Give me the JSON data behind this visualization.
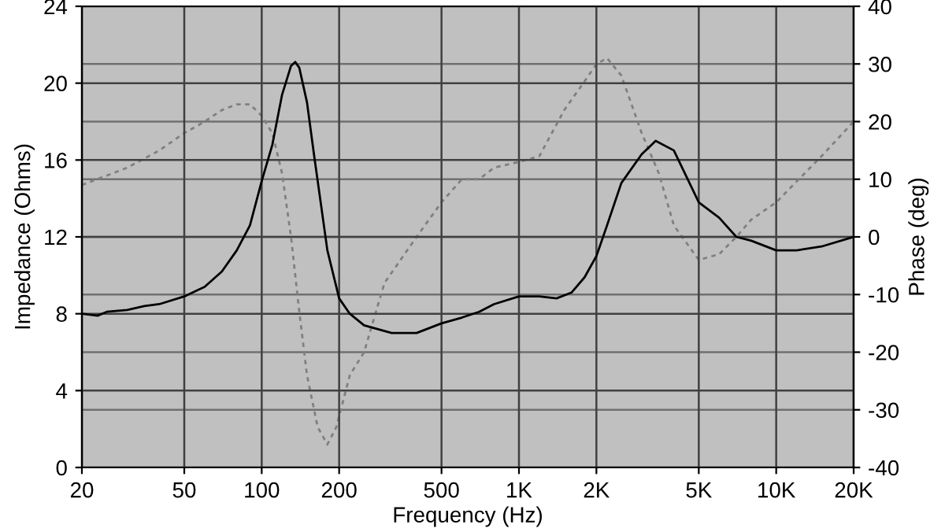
{
  "chart_data": {
    "type": "line",
    "xlabel": "Frequency (Hz)",
    "ylabel": "Impedance (Ohms)",
    "y2label": "Phase (deg)",
    "log": "x",
    "grid": true,
    "xlim": [
      20,
      20000
    ],
    "xticks": [
      20,
      50,
      100,
      200,
      500,
      {
        "value": 1000,
        "label": "1K"
      },
      {
        "value": 2000,
        "label": "2K"
      },
      {
        "value": 5000,
        "label": "5K"
      },
      {
        "value": 10000,
        "label": "10K"
      },
      {
        "value": 20000,
        "label": "20K"
      }
    ],
    "ylim": [
      0,
      24
    ],
    "yticks": [
      0,
      4,
      8,
      12,
      16,
      20,
      24
    ],
    "y2lim": [
      -40,
      40
    ],
    "y2ticks": [
      -40,
      -30,
      -20,
      -10,
      0,
      10,
      20,
      30,
      40
    ],
    "series": [
      {
        "color": "#000000",
        "line_style": "solid",
        "x": [
          20,
          23,
          25,
          30,
          35,
          40,
          50,
          60,
          70,
          80,
          90,
          100,
          110,
          120,
          130,
          135,
          140,
          150,
          160,
          180,
          200,
          220,
          250,
          320,
          400,
          500,
          600,
          700,
          800,
          1000,
          1200,
          1400,
          1600,
          1800,
          2000,
          2200,
          2500,
          3000,
          3400,
          4000,
          5000,
          6000,
          7000,
          8000,
          10000,
          12000,
          15000,
          20000
        ],
        "values": [
          8.0,
          7.9,
          8.1,
          8.2,
          8.4,
          8.5,
          8.9,
          9.4,
          10.2,
          11.3,
          12.6,
          14.9,
          16.8,
          19.4,
          20.9,
          21.1,
          20.8,
          19.0,
          16.2,
          11.3,
          8.8,
          8.0,
          7.4,
          7.0,
          7.0,
          7.5,
          7.8,
          8.1,
          8.5,
          8.9,
          8.9,
          8.8,
          9.1,
          9.9,
          11.0,
          12.6,
          14.8,
          16.3,
          17.0,
          16.5,
          13.8,
          13.0,
          12.0,
          11.8,
          11.3,
          11.3,
          11.5,
          12.0
        ]
      },
      {
        "color": "#808080",
        "line_style": "dashed",
        "axis": "y2",
        "x": [
          20,
          30,
          40,
          50,
          60,
          70,
          80,
          90,
          100,
          110,
          120,
          130,
          140,
          150,
          165,
          180,
          195,
          220,
          250,
          300,
          400,
          500,
          600,
          700,
          800,
          1000,
          1200,
          1500,
          1800,
          2000,
          2200,
          2500,
          3000,
          3500,
          4000,
          5000,
          6000,
          7000,
          8000,
          10000,
          15000,
          20000
        ],
        "values": [
          9,
          12,
          15,
          18,
          20,
          22,
          23,
          23,
          21,
          18,
          11,
          0,
          -13,
          -24,
          -33,
          -36,
          -33,
          -24,
          -20,
          -8,
          0,
          6,
          10,
          10,
          12,
          13,
          14,
          22,
          27,
          30,
          31,
          28,
          18,
          11,
          2,
          -4,
          -3,
          0,
          3,
          6,
          14,
          20
        ]
      }
    ]
  }
}
